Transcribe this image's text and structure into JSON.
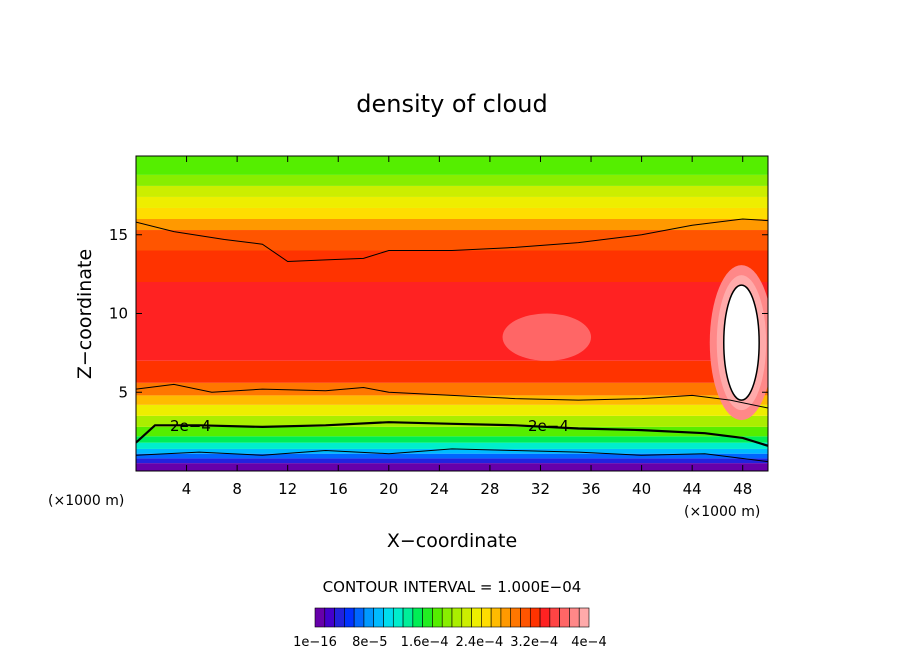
{
  "chart_data": {
    "type": "heatmap",
    "title": "density of cloud",
    "xlabel": "X−coordinate",
    "ylabel": "Z−coordinate",
    "x_unit_left": "(×1000 m)",
    "x_unit_right": "(×1000 m)",
    "xlim": [
      0,
      50
    ],
    "ylim": [
      0,
      20
    ],
    "x_ticks": [
      4,
      8,
      12,
      16,
      20,
      24,
      28,
      32,
      36,
      40,
      44,
      48
    ],
    "y_ticks": [
      5,
      10,
      15
    ],
    "contour_interval_text": "CONTOUR INTERVAL = 1.000E−04",
    "contour_label": "2e−4",
    "colorbar": {
      "labels": [
        "1e−16",
        "8e−5",
        "1.6e−4",
        "2.4e−4",
        "3.2e−4",
        "4e−4"
      ],
      "colors": [
        "#6600aa",
        "#4400cc",
        "#2222dd",
        "#0033ff",
        "#0066ff",
        "#0099ff",
        "#00bbff",
        "#00ddee",
        "#00eecc",
        "#00ee99",
        "#00ee55",
        "#22ee22",
        "#55ee00",
        "#88ee00",
        "#aaee00",
        "#ccee00",
        "#eeee00",
        "#ffdd00",
        "#ffbb00",
        "#ff9900",
        "#ff7700",
        "#ff5500",
        "#ff3300",
        "#ff2222",
        "#ff4444",
        "#ff6666",
        "#ff8888",
        "#ffaaaa"
      ]
    },
    "bands": [
      {
        "z_bottom": 0.0,
        "z_top": 0.5,
        "color": "#6600aa"
      },
      {
        "z_bottom": 0.5,
        "z_top": 0.8,
        "color": "#2222dd"
      },
      {
        "z_bottom": 0.8,
        "z_top": 1.1,
        "color": "#0066ff"
      },
      {
        "z_bottom": 1.1,
        "z_top": 1.4,
        "color": "#00bbff"
      },
      {
        "z_bottom": 1.4,
        "z_top": 1.8,
        "color": "#00eecc"
      },
      {
        "z_bottom": 1.8,
        "z_top": 2.2,
        "color": "#00ee55"
      },
      {
        "z_bottom": 2.2,
        "z_top": 2.8,
        "color": "#55ee00"
      },
      {
        "z_bottom": 2.8,
        "z_top": 3.5,
        "color": "#aaee00"
      },
      {
        "z_bottom": 3.5,
        "z_top": 4.2,
        "color": "#eeee00"
      },
      {
        "z_bottom": 4.2,
        "z_top": 4.8,
        "color": "#ffbb00"
      },
      {
        "z_bottom": 4.8,
        "z_top": 5.6,
        "color": "#ff7700"
      },
      {
        "z_bottom": 5.6,
        "z_top": 7.0,
        "color": "#ff3300"
      },
      {
        "z_bottom": 7.0,
        "z_top": 12.0,
        "color": "#ff2222"
      },
      {
        "z_bottom": 12.0,
        "z_top": 14.0,
        "color": "#ff3300"
      },
      {
        "z_bottom": 14.0,
        "z_top": 15.3,
        "color": "#ff5500"
      },
      {
        "z_bottom": 15.3,
        "z_top": 16.0,
        "color": "#ff9900"
      },
      {
        "z_bottom": 16.0,
        "z_top": 16.7,
        "color": "#ffdd00"
      },
      {
        "z_bottom": 16.7,
        "z_top": 17.4,
        "color": "#eeee00"
      },
      {
        "z_bottom": 17.4,
        "z_top": 18.1,
        "color": "#ccee00"
      },
      {
        "z_bottom": 18.1,
        "z_top": 18.8,
        "color": "#88ee00"
      },
      {
        "z_bottom": 18.8,
        "z_top": 20.0,
        "color": "#55ee00"
      }
    ],
    "contours": [
      {
        "level": "2e-4",
        "width": 2.2,
        "points": [
          [
            0,
            1.8
          ],
          [
            1.5,
            2.9
          ],
          [
            5,
            2.9
          ],
          [
            10,
            2.8
          ],
          [
            15,
            2.9
          ],
          [
            20,
            3.1
          ],
          [
            25,
            3.0
          ],
          [
            30,
            2.9
          ],
          [
            35,
            2.7
          ],
          [
            40,
            2.6
          ],
          [
            45,
            2.4
          ],
          [
            48,
            2.1
          ],
          [
            50,
            1.6
          ]
        ]
      },
      {
        "level": "1e-4",
        "width": 1.0,
        "points": [
          [
            0,
            5.2
          ],
          [
            3,
            5.5
          ],
          [
            6,
            5.0
          ],
          [
            10,
            5.2
          ],
          [
            15,
            5.1
          ],
          [
            18,
            5.3
          ],
          [
            20,
            5.0
          ],
          [
            25,
            4.8
          ],
          [
            30,
            4.6
          ],
          [
            35,
            4.5
          ],
          [
            40,
            4.6
          ],
          [
            44,
            4.8
          ],
          [
            47,
            4.5
          ],
          [
            50,
            4.0
          ]
        ]
      },
      {
        "level": "1e-4",
        "width": 1.0,
        "points": [
          [
            0,
            15.8
          ],
          [
            3,
            15.2
          ],
          [
            7,
            14.7
          ],
          [
            10,
            14.4
          ],
          [
            12,
            13.3
          ],
          [
            15,
            13.4
          ],
          [
            18,
            13.5
          ],
          [
            20,
            14.0
          ],
          [
            25,
            14.0
          ],
          [
            30,
            14.2
          ],
          [
            35,
            14.5
          ],
          [
            40,
            15.0
          ],
          [
            44,
            15.6
          ],
          [
            48,
            16.0
          ],
          [
            50,
            15.9
          ]
        ]
      },
      {
        "level": "1e-4",
        "width": 1.0,
        "points": [
          [
            0,
            1.0
          ],
          [
            5,
            1.2
          ],
          [
            10,
            1.0
          ],
          [
            15,
            1.3
          ],
          [
            20,
            1.1
          ],
          [
            25,
            1.4
          ],
          [
            30,
            1.3
          ],
          [
            35,
            1.2
          ],
          [
            40,
            1.0
          ],
          [
            45,
            1.1
          ],
          [
            50,
            0.6
          ]
        ]
      }
    ],
    "white_blob": {
      "x": [
        46.5,
        49.3
      ],
      "z": [
        4.5,
        11.8
      ]
    },
    "pink_patch": {
      "x": [
        29,
        36
      ],
      "z": [
        7,
        10
      ]
    }
  }
}
